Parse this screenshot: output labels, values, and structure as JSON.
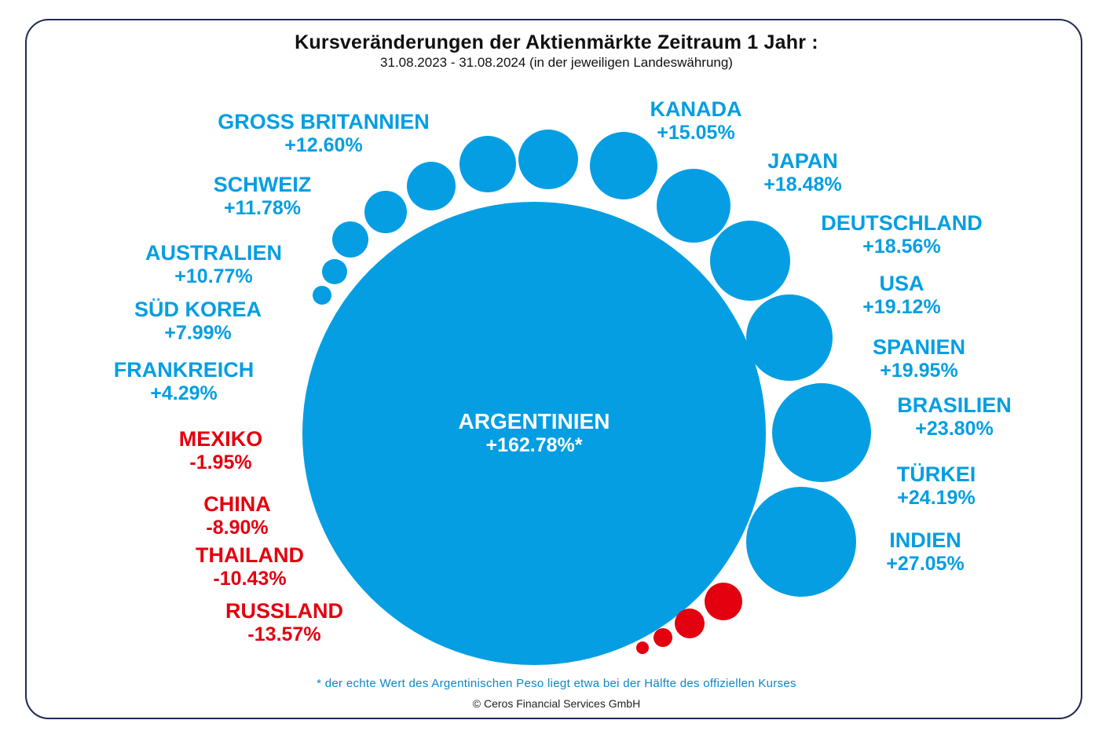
{
  "title": "Kursveränderungen der Aktienmärkte Zeitraum 1  Jahr :",
  "subtitle": "31.08.2023 - 31.08.2024 (in der jeweiligen Landeswährung)",
  "footnote": "* der echte Wert des Argentinischen Peso liegt etwa bei der Hälfte des offiziellen Kurses",
  "copyright": "© Ceros Financial Services GmbH",
  "colors": {
    "positive": "#059ee2",
    "negative": "#e3000f",
    "frame": "#1f2a55"
  },
  "chart_data": {
    "type": "bubble",
    "title": "Kursveränderungen der Aktienmärkte Zeitraum 1  Jahr :",
    "unit": "%",
    "main": {
      "name": "ARGENTINIEN",
      "value": 162.78,
      "label": "+162.78%*"
    },
    "series": [
      {
        "name": "SÜD KOREA",
        "value": 7.99,
        "label": "+7.99%"
      },
      {
        "name": "AUSTRALIEN",
        "value": 10.77,
        "label": "+10.77%"
      },
      {
        "name": "SCHWEIZ",
        "value": 11.78,
        "label": "+11.78%"
      },
      {
        "name": "GROSS BRITANNIEN",
        "value": 12.6,
        "label": "+12.60%"
      },
      {
        "name": "FRANKREICH",
        "value": 4.29,
        "label": "+4.29%"
      },
      {
        "name": "KANADA",
        "value": 15.05,
        "label": "+15.05%"
      },
      {
        "name": "JAPAN",
        "value": 18.48,
        "label": "+18.48%"
      },
      {
        "name": "DEUTSCHLAND",
        "value": 18.56,
        "label": "+18.56%"
      },
      {
        "name": "USA",
        "value": 19.12,
        "label": "+19.12%"
      },
      {
        "name": "SPANIEN",
        "value": 19.95,
        "label": "+19.95%"
      },
      {
        "name": "BRASILIEN",
        "value": 23.8,
        "label": "+23.80%"
      },
      {
        "name": "TÜRKEI",
        "value": 24.19,
        "label": "+24.19%"
      },
      {
        "name": "INDIEN",
        "value": 27.05,
        "label": "+27.05%"
      },
      {
        "name": "MEXIKO",
        "value": -1.95,
        "label": "-1.95%"
      },
      {
        "name": "CHINA",
        "value": -8.9,
        "label": "-8.90%"
      },
      {
        "name": "THAILAND",
        "value": -10.43,
        "label": "-10.43%"
      },
      {
        "name": "RUSSLAND",
        "value": -13.57,
        "label": "-13.57%"
      }
    ]
  }
}
